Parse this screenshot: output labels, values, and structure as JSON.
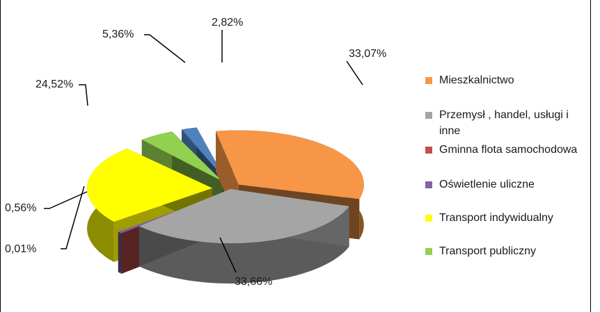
{
  "chart_data": {
    "type": "pie",
    "variant": "3d-exploded",
    "title": "",
    "legend_position": "right",
    "slices": [
      {
        "label": "Mieszkalnictwo",
        "value": 33.07,
        "display": "33,07%",
        "color": "#F79646"
      },
      {
        "label": "Przemysł , handel, usługi i inne",
        "value": 33.66,
        "display": "33,66%",
        "color": "#A5A5A5"
      },
      {
        "label": "Gminna flota samochodowa",
        "value": 0.01,
        "display": "0,01%",
        "color": "#C0504D"
      },
      {
        "label": "Oświetlenie uliczne",
        "value": 0.56,
        "display": "0,56%",
        "color": "#8064A2"
      },
      {
        "label": "Transport indywidualny",
        "value": 24.52,
        "display": "24,52%",
        "color": "#FFFF00"
      },
      {
        "label": "Transport publiczny",
        "value": 5.36,
        "display": "5,36%",
        "color": "#92D050"
      },
      {
        "label": "",
        "value": 2.82,
        "display": "2,82%",
        "color": "#4F81BD"
      }
    ]
  }
}
